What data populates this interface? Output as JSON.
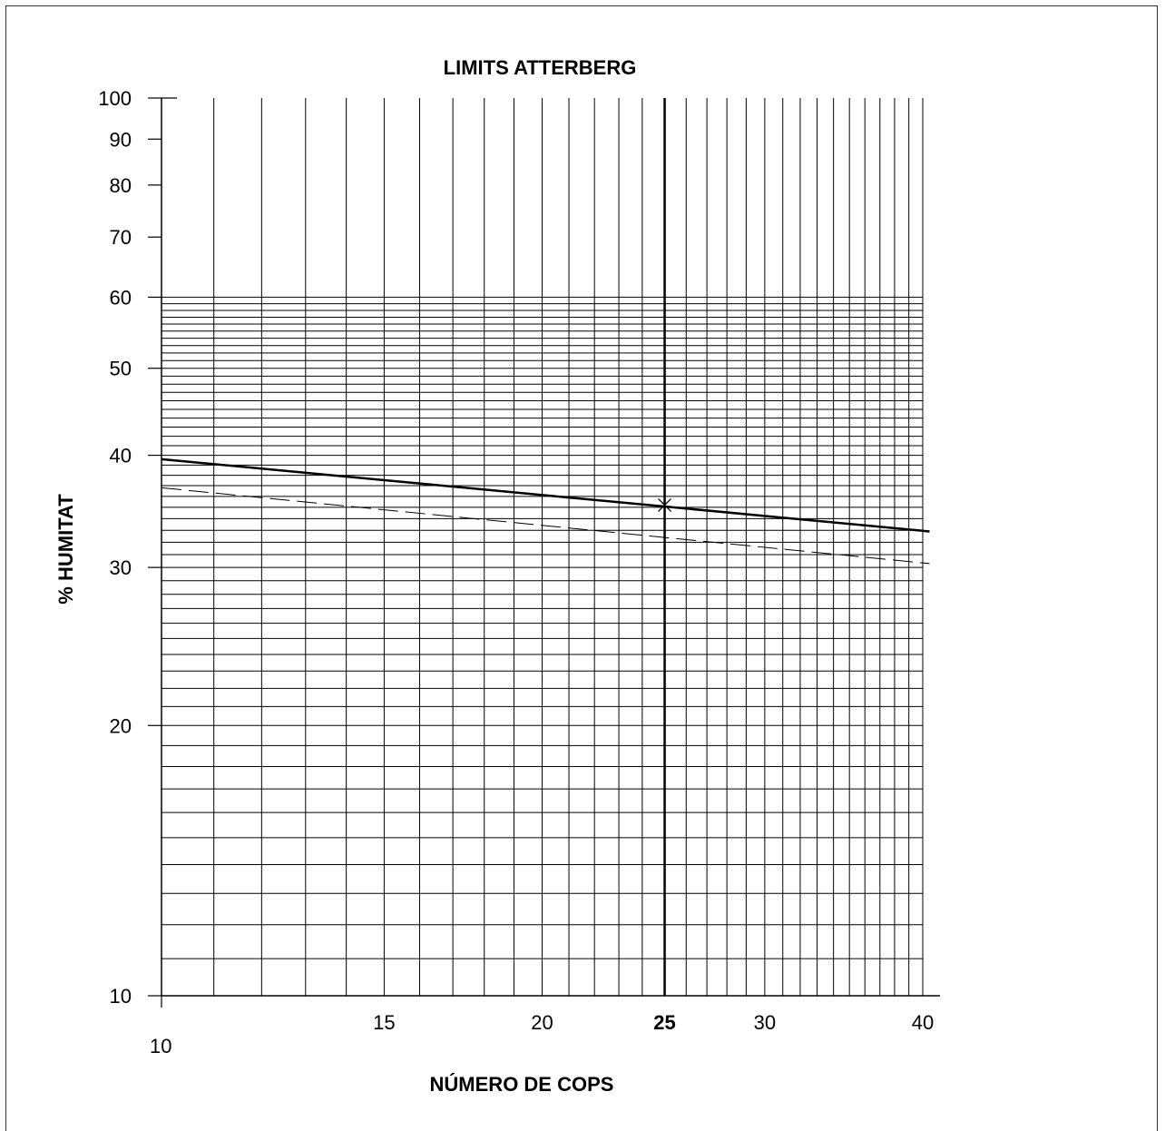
{
  "chart_data": {
    "type": "line",
    "title": "LIMITS ATTERBERG",
    "xlabel": "NÚMERO DE COPS",
    "ylabel": "% HUMITAT",
    "x_scale": "log",
    "y_scale": "log",
    "xlim": [
      10,
      40
    ],
    "ylim": [
      10,
      100
    ],
    "grid": true,
    "x_tick_labels": [
      {
        "value": 10,
        "label": "10",
        "bold": false
      },
      {
        "value": 15,
        "label": "15",
        "bold": false
      },
      {
        "value": 20,
        "label": "20",
        "bold": false
      },
      {
        "value": 25,
        "label": "25",
        "bold": true
      },
      {
        "value": 30,
        "label": "30",
        "bold": false
      },
      {
        "value": 40,
        "label": "40",
        "bold": false
      }
    ],
    "y_tick_labels": [
      {
        "value": 10,
        "label": "10"
      },
      {
        "value": 20,
        "label": "20"
      },
      {
        "value": 30,
        "label": "30"
      },
      {
        "value": 40,
        "label": "40"
      },
      {
        "value": 50,
        "label": "50"
      },
      {
        "value": 60,
        "label": "60"
      },
      {
        "value": 70,
        "label": "70"
      },
      {
        "value": 80,
        "label": "80"
      },
      {
        "value": 90,
        "label": "90"
      },
      {
        "value": 100,
        "label": "100"
      }
    ],
    "reference_line_x": 25,
    "series": [
      {
        "style": "solid",
        "color": "#000000",
        "x": [
          10,
          40.5
        ],
        "y": [
          39.6,
          32.9
        ]
      },
      {
        "style": "dashed",
        "color": "#000000",
        "x": [
          10,
          40.5
        ],
        "y": [
          36.8,
          30.3
        ]
      }
    ],
    "marker": {
      "symbol": "x",
      "x": 25,
      "y": 35.2
    }
  }
}
